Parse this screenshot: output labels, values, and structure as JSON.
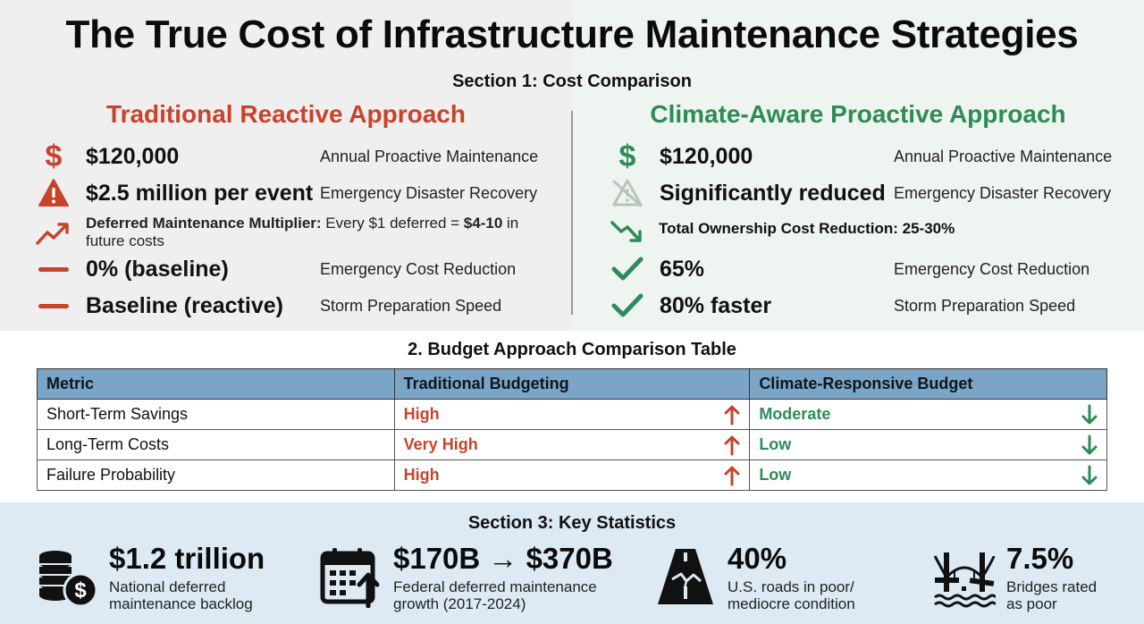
{
  "title": "The True Cost of Infrastructure Maintenance Strategies",
  "section1": {
    "title": "Section 1: Cost Comparison",
    "left": {
      "heading": "Traditional Reactive Approach",
      "color": "#c9432b",
      "rows": [
        {
          "icon": "dollar-icon",
          "value": "$120,000",
          "label": "Annual Proactive Maintenance"
        },
        {
          "icon": "warning-icon",
          "value": "$2.5 million per event",
          "label": "Emergency Disaster Recovery"
        },
        {
          "icon": "dash-icon",
          "value": "0% (baseline)",
          "label": "Emergency Cost Reduction"
        },
        {
          "icon": "dash-icon",
          "value": "Baseline (reactive)",
          "label": "Storm Preparation Speed"
        }
      ],
      "multiplier": {
        "label": "Deferred Maintenance Multiplier:",
        "text_pre": " Every $1 deferred = ",
        "emphasis": "$4-10",
        "text_post": " in future costs"
      }
    },
    "right": {
      "heading": "Climate-Aware Proactive Approach",
      "color": "#2e8b57",
      "rows": [
        {
          "icon": "dollar-icon",
          "value": "$120,000",
          "label": "Annual Proactive Maintenance"
        },
        {
          "icon": "warning-crossed-icon",
          "value": "Significantly reduced",
          "label": "Emergency Disaster Recovery"
        },
        {
          "icon": "check-icon",
          "value": "65%",
          "label": "Emergency Cost Reduction"
        },
        {
          "icon": "check-icon",
          "value": "80% faster",
          "label": "Storm Preparation Speed"
        }
      ],
      "reduction": "Total Ownership Cost Reduction: 25-30%"
    }
  },
  "section2": {
    "title": "2. Budget Approach Comparison Table",
    "headers": [
      "Metric",
      "Traditional Budgeting",
      "Climate-Responsive Budget"
    ],
    "rows": [
      {
        "metric": "Short-Term Savings",
        "traditional": "High",
        "climate": "Moderate"
      },
      {
        "metric": "Long-Term Costs",
        "traditional": "Very High",
        "climate": "Low"
      },
      {
        "metric": "Failure Probability",
        "traditional": "High",
        "climate": "Low"
      }
    ]
  },
  "section3": {
    "title": "Section 3: Key Statistics",
    "stats": [
      {
        "icon": "coins-icon",
        "value": "$1.2 trillion",
        "desc1": "National deferred",
        "desc2": "maintenance backlog"
      },
      {
        "icon": "calendar-growth-icon",
        "value": "$170B → $370B",
        "desc1": "Federal deferred maintenance",
        "desc2": "growth (2017-2024)"
      },
      {
        "icon": "cracked-road-icon",
        "value": "40%",
        "desc1": "U.S. roads in poor/",
        "desc2": "mediocre condition"
      },
      {
        "icon": "bridge-icon",
        "value": "7.5%",
        "desc1": "Bridges rated",
        "desc2": "as poor"
      }
    ]
  }
}
